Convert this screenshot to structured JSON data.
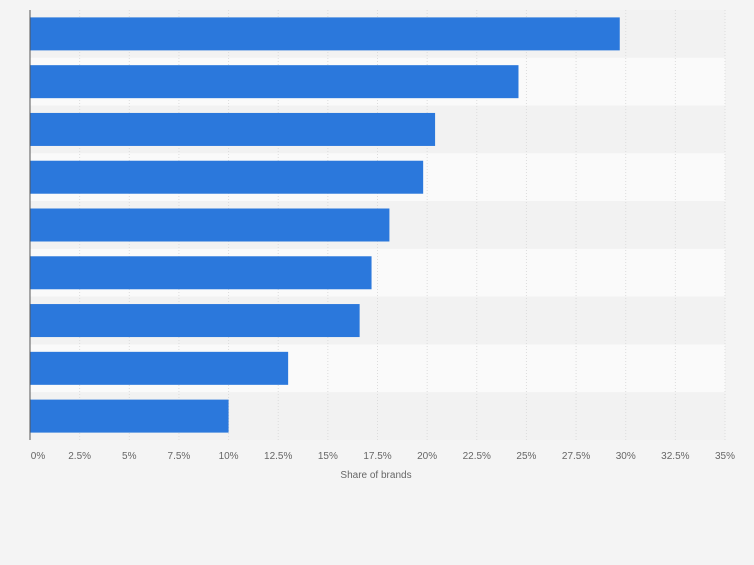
{
  "chart_data": {
    "type": "bar",
    "orientation": "horizontal",
    "categories": [
      "",
      "",
      "",
      "",
      "",
      "",
      "",
      "",
      ""
    ],
    "values": [
      29.7,
      24.6,
      20.4,
      19.8,
      18.1,
      17.2,
      16.6,
      13.0,
      10.0
    ],
    "xlabel": "Share of brands",
    "ylabel": "",
    "xlim": [
      0,
      35
    ],
    "tick_labels": [
      "0%",
      "2.5%",
      "5%",
      "7.5%",
      "10%",
      "12.5%",
      "15%",
      "17.5%",
      "20%",
      "22.5%",
      "25%",
      "27.5%",
      "30%",
      "32.5%",
      "35%"
    ],
    "grid": true,
    "colors": {
      "bar": "#2b78dc",
      "band_light": "#fafafa",
      "band_dark": "#f2f2f2",
      "grid": "#dcdcdc",
      "axis": "#555555",
      "tick_text": "#666666",
      "page_bg": "#f4f4f4"
    }
  }
}
